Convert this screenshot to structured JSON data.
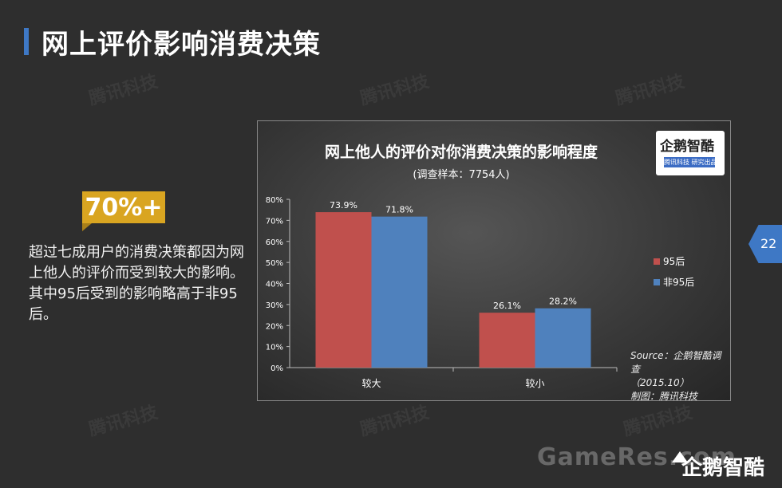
{
  "page": {
    "title": "网上评价影响消费决策",
    "page_number": "22",
    "accent_color": "#3e78c5"
  },
  "watermark": {
    "text": "腾讯科技"
  },
  "stat": {
    "value": "70%+",
    "description": "超过七成用户的消费决策都因为网上他人的评价而受到较大的影响。其中95后受到的影响略高于非95后。",
    "badge_color": "#d9a521"
  },
  "chart_logo": {
    "name": "企鹅智酷",
    "sub": "腾讯科技 研究出品"
  },
  "chart_data": {
    "type": "bar",
    "title": "网上他人的评价对你消费决策的影响程度",
    "subtitle": "(调查样本：7754人)",
    "categories": [
      "较大",
      "较小"
    ],
    "series": [
      {
        "name": "95后",
        "values": [
          73.9,
          26.1
        ],
        "labels": [
          "73.9%",
          "26.1%"
        ],
        "color": "#c0504d"
      },
      {
        "name": "非95后",
        "values": [
          71.8,
          28.2
        ],
        "labels": [
          "71.8%",
          "28.2%"
        ],
        "color": "#4f81bd"
      }
    ],
    "ylim": [
      0,
      80
    ],
    "yticks": [
      "0%",
      "10%",
      "20%",
      "30%",
      "40%",
      "50%",
      "60%",
      "70%",
      "80%"
    ],
    "legend_position": "right",
    "grid": false
  },
  "source": {
    "line1": "Source：企鹅智酷调查",
    "line2": "（2015.10）",
    "line3": "制图：腾讯科技"
  },
  "footer": {
    "site_watermark": "GameRes.com",
    "brand": "企鹅智酷"
  }
}
